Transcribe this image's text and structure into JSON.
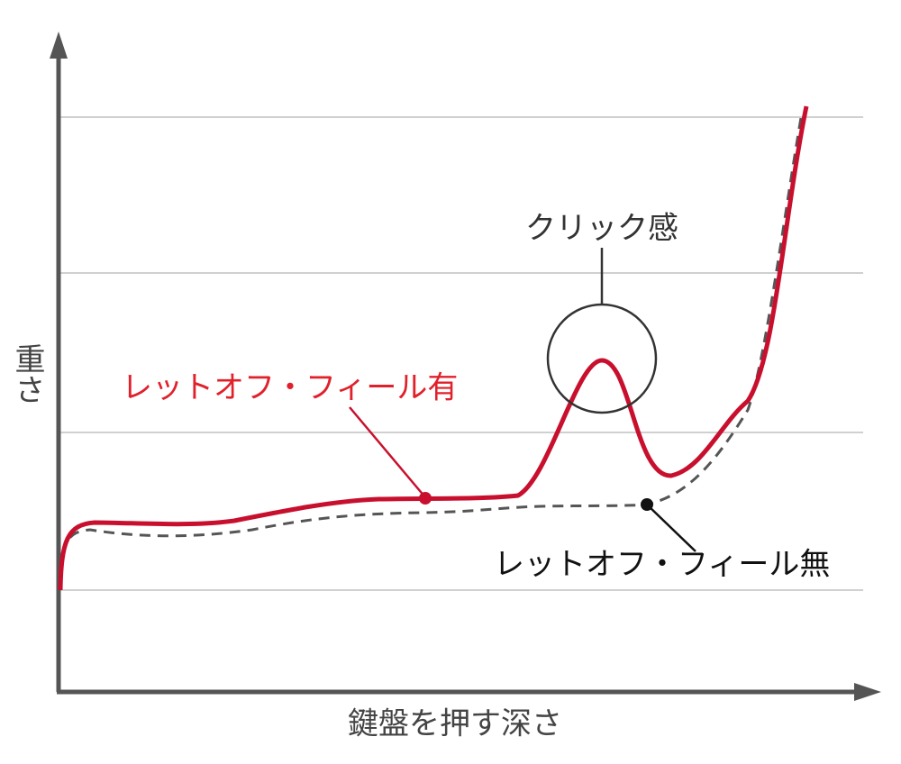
{
  "axes": {
    "y_label": "重さ",
    "x_label": "鍵盤を押す深さ"
  },
  "annotations": {
    "click": "クリック感",
    "with_letoff": "レットオフ・フィール有",
    "without_letoff": "レットオフ・フィール無"
  }
}
